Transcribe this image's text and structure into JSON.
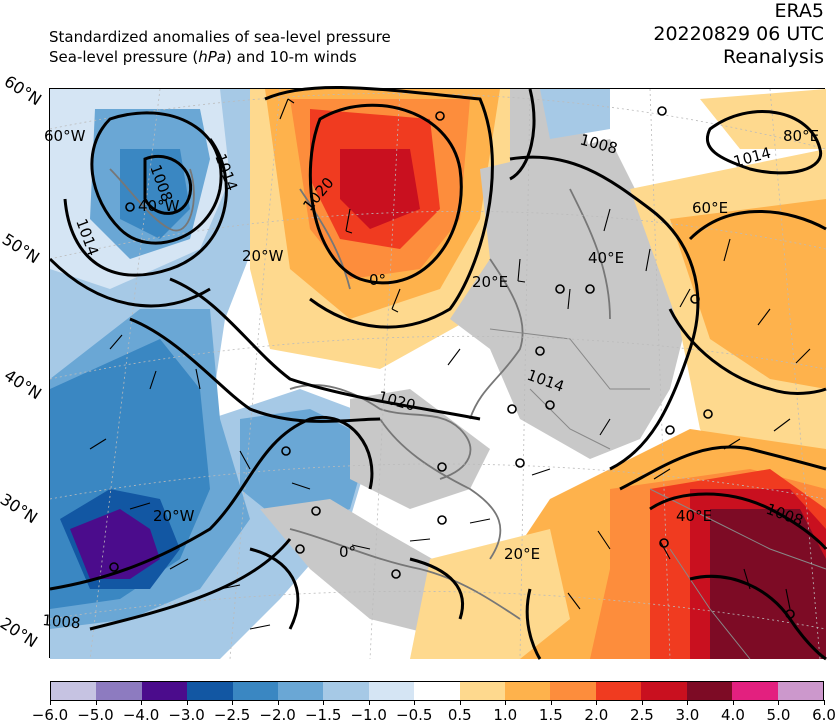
{
  "header": {
    "line1": "Standardized anomalies of sea-level pressure",
    "line2_prefix": "Sea-level pressure (",
    "line2_unit": "hPa",
    "line2_suffix": ") and 10-m winds",
    "right_lines": "ERA5\n20220829 06 UTC\nReanalysis"
  },
  "lat_labels": [
    "60°N",
    "50°N",
    "40°N",
    "30°N",
    "20°N"
  ],
  "lon_labels": [
    "60°W",
    "40°W",
    "20°W",
    "0°",
    "20°E",
    "40°E",
    "60°E",
    "80°E",
    "20°W",
    "0°",
    "20°E",
    "40°E"
  ],
  "contour_labels": [
    "1008",
    "1014",
    "1020",
    "1014",
    "1008",
    "1014",
    "1020",
    "1008",
    "1014",
    "1008"
  ],
  "colorbar": {
    "colors": [
      "#c6c3e2",
      "#8d7bc0",
      "#4b0c8c",
      "#1257a3",
      "#3a87c2",
      "#6aa7d5",
      "#a6c9e6",
      "#d5e5f4",
      "#ffffff",
      "#fed98e",
      "#feb24c",
      "#fd8d3c",
      "#f03b20",
      "#c9101f",
      "#7d0b25",
      "#e3207f",
      "#cc98cc"
    ],
    "tick_labels": [
      "−6.0",
      "−5.0",
      "−4.0",
      "−3.0",
      "−2.5",
      "−2.0",
      "−1.5",
      "−1.0",
      "−0.5",
      "0.5",
      "1.0",
      "1.5",
      "2.0",
      "2.5",
      "3.0",
      "4.0",
      "5.0",
      "6.0"
    ]
  }
}
